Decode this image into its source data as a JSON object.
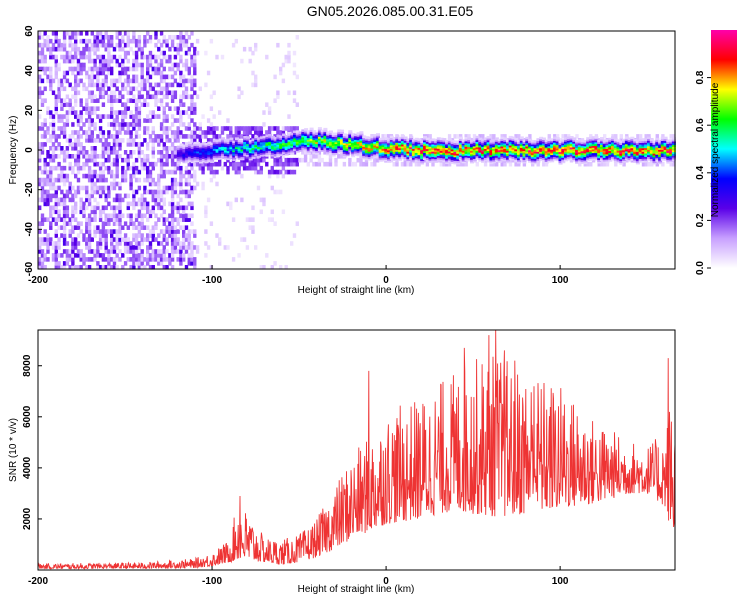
{
  "title": "GN05.2026.085.00.31.E05",
  "chart_data": [
    {
      "type": "heatmap",
      "xlabel": "Height of straight line (km)",
      "ylabel": "Frequency (Hz)",
      "xlim": [
        -200,
        166
      ],
      "ylim": [
        -60,
        60
      ],
      "x_ticks": [
        -200,
        -100,
        0,
        100
      ],
      "y_ticks": [
        -60,
        -40,
        -20,
        0,
        20,
        40,
        60
      ],
      "colorbar": {
        "label": "Normalized spectral amplitude",
        "range": [
          0,
          1
        ],
        "ticks": [
          0.0,
          0.2,
          0.4,
          0.6,
          0.8
        ],
        "colors": [
          "#ffffff",
          "#c8a0ff",
          "#5a00e8",
          "#0000ff",
          "#00ffff",
          "#00ff00",
          "#ffff00",
          "#ff0000",
          "#ff00aa"
        ]
      },
      "ridge": {
        "x": [
          -120,
          -100,
          -80,
          -60,
          -40,
          -20,
          0,
          20,
          40,
          60,
          80,
          100,
          120,
          140,
          166
        ],
        "freq": [
          -3,
          0,
          1,
          3,
          5,
          3,
          1,
          0,
          0,
          0,
          0,
          0,
          0,
          0,
          0
        ],
        "amplitude": [
          0.3,
          0.45,
          0.55,
          0.6,
          0.7,
          0.75,
          0.8,
          0.9,
          0.85,
          0.85,
          0.85,
          0.9,
          0.85,
          0.85,
          0.85
        ]
      },
      "noise_region_x": [
        -200,
        -110
      ]
    },
    {
      "type": "line",
      "xlabel": "Height of straight line (km)",
      "ylabel": "SNR (10 * v/v)",
      "xlim": [
        -200,
        166
      ],
      "ylim": [
        0,
        9400
      ],
      "x_ticks": [
        -200,
        -100,
        0,
        100
      ],
      "y_ticks": [
        2000,
        4000,
        6000,
        8000
      ],
      "color": "#ee3333",
      "envelope": {
        "x": [
          -200,
          -140,
          -110,
          -100,
          -90,
          -85,
          -70,
          -60,
          -50,
          -40,
          -30,
          -20,
          -10,
          0,
          10,
          20,
          30,
          40,
          50,
          60,
          70,
          80,
          90,
          100,
          110,
          120,
          130,
          140,
          150,
          160,
          166
        ],
        "lo": [
          50,
          60,
          80,
          150,
          300,
          400,
          300,
          200,
          300,
          500,
          800,
          1200,
          1500,
          1800,
          1900,
          2000,
          2200,
          2300,
          2200,
          2100,
          2100,
          2200,
          2300,
          2400,
          2500,
          2600,
          2800,
          3000,
          3000,
          2500,
          1000
        ],
        "hi": [
          250,
          300,
          450,
          700,
          1200,
          2800,
          1300,
          1200,
          1400,
          2000,
          3200,
          4500,
          5200,
          6200,
          6500,
          6800,
          7400,
          7800,
          8300,
          8600,
          8300,
          7900,
          7600,
          7300,
          6600,
          5900,
          5500,
          5100,
          4900,
          5400,
          8000
        ]
      },
      "peaks": [
        {
          "x": -84,
          "y": 2900
        },
        {
          "x": -10,
          "y": 7800
        },
        {
          "x": 45,
          "y": 8700
        },
        {
          "x": 59,
          "y": 9200
        },
        {
          "x": 63,
          "y": 9400
        },
        {
          "x": 68,
          "y": 8600
        },
        {
          "x": 74,
          "y": 8200
        },
        {
          "x": 85,
          "y": 7200
        },
        {
          "x": 162,
          "y": 8300
        }
      ]
    }
  ]
}
